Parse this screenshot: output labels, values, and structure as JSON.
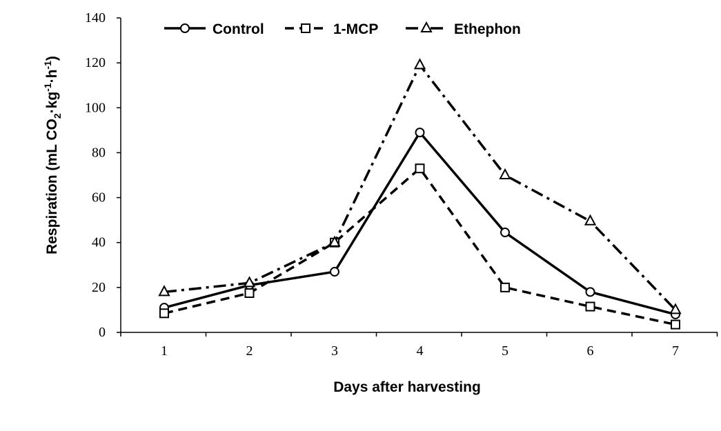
{
  "chart_data": {
    "type": "line",
    "title": "",
    "xlabel": "Days after harvesting",
    "ylabel": {
      "parts": [
        "Respiration (mL CO",
        "2",
        "·kg",
        "-1",
        "·h",
        "-1",
        ")"
      ]
    },
    "x": [
      1,
      2,
      3,
      4,
      5,
      6,
      7
    ],
    "xticks": [
      "1",
      "2",
      "3",
      "4",
      "5",
      "6",
      "7"
    ],
    "ylim": [
      0,
      140
    ],
    "yticks": [
      "0",
      "20",
      "40",
      "60",
      "80",
      "100",
      "120",
      "140"
    ],
    "grid": false,
    "legend_position": "top",
    "series": [
      {
        "name": "Control",
        "marker": "circle",
        "line_style": "solid",
        "color": "#000000",
        "values": [
          11,
          21,
          27,
          89,
          44.5,
          18,
          8
        ]
      },
      {
        "name": "1-MCP",
        "marker": "square",
        "line_style": "dashed",
        "color": "#000000",
        "values": [
          8.5,
          17.5,
          40,
          73,
          20,
          11.5,
          3.5
        ]
      },
      {
        "name": "Ethephon",
        "marker": "triangle",
        "line_style": "dashdot",
        "color": "#000000",
        "values": [
          18,
          22,
          40,
          119,
          70,
          49.5,
          10
        ]
      }
    ]
  }
}
